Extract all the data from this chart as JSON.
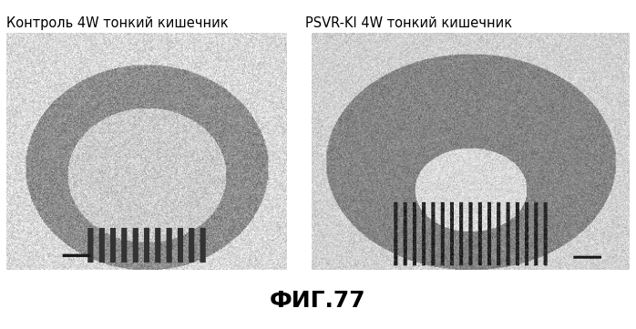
{
  "label_left": "Контроль 4W тонкий кишечник",
  "label_right": "PSVR-KI 4W тонкий кишечник",
  "figure_caption": "ФИГ.77",
  "bg_color": "#ffffff",
  "fig_caption_fontsize": 18,
  "label_fontsize": 10.5,
  "label_fontfamily": "DejaVu Sans",
  "caption_fontfamily": "DejaVu Sans"
}
